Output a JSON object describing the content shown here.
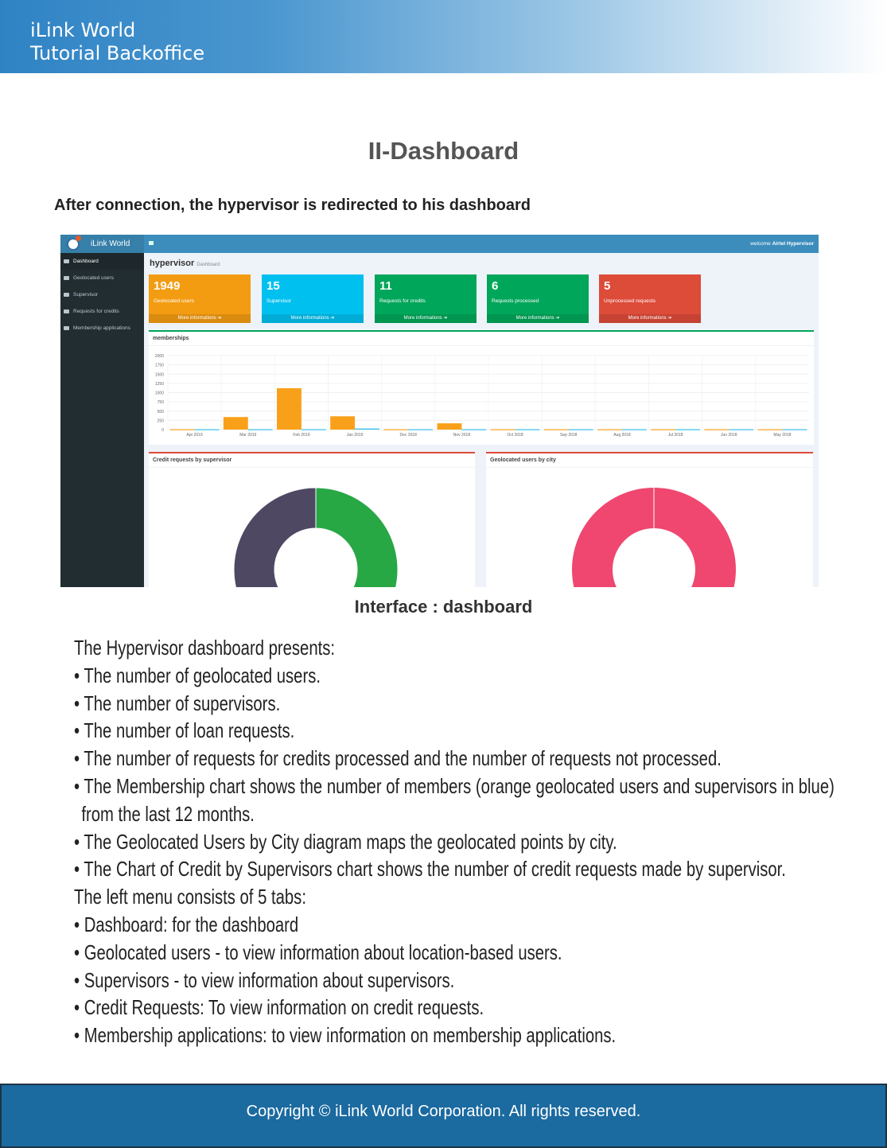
{
  "header": {
    "line1": "iLink World",
    "line2": "Tutorial Backoffice"
  },
  "title": "II-Dashboard",
  "intro": "After connection, the hypervisor is redirected to his dashboard",
  "app": {
    "logo": "iLink World",
    "sidebar": [
      "Dashboard",
      "Geolocated users",
      "Supervisor",
      "Requests for credits",
      "Membership applications"
    ],
    "welcome": "welcome",
    "user": "Airtel Hypervisor",
    "page_title": "hypervisor",
    "page_sub": "Dashboard",
    "boxes": [
      {
        "value": "1949",
        "label": "Geolocated users",
        "link": "More informations ➔",
        "color": "#f39c12"
      },
      {
        "value": "15",
        "label": "Supervisor",
        "link": "More informations ➔",
        "color": "#00c0ef"
      },
      {
        "value": "11",
        "label": "Requests for credits",
        "link": "More informations ➔",
        "color": "#00a65a"
      },
      {
        "value": "6",
        "label": "Requests processed",
        "link": "More informations ➔",
        "color": "#00a65a"
      },
      {
        "value": "5",
        "label": "Unprocessed requests",
        "link": "More informations ➔",
        "color": "#dd4b39"
      }
    ],
    "credit_title": "Credit requests by supervisor",
    "city_title": "Geolocated users by city"
  },
  "chart_data": {
    "type": "bar",
    "title": "memberships",
    "categories": [
      "Apr 2019",
      "Mar 2019",
      "Feb 2019",
      "Jan 2019",
      "Dec 2018",
      "Nov 2018",
      "Oct 2018",
      "Sep 2018",
      "Aug 2018",
      "Jul 2018",
      "Jun 2018",
      "May 2018"
    ],
    "series": [
      {
        "color": "#f9a01b",
        "values": [
          10,
          340,
          1120,
          360,
          10,
          170,
          10,
          10,
          10,
          10,
          10,
          10
        ]
      },
      {
        "color": "#36c0ef",
        "values": [
          10,
          10,
          10,
          30,
          10,
          10,
          10,
          10,
          10,
          10,
          10,
          10
        ]
      }
    ],
    "yticks": [
      0,
      250,
      500,
      750,
      1000,
      1250,
      1500,
      1750,
      2000
    ],
    "ylim": [
      0,
      2000
    ],
    "grid": true
  },
  "caption": "Interface : dashboard",
  "body": [
    "The Hypervisor dashboard presents:",
    "• The number of geolocated users.",
    "• The number of supervisors.",
    "• The number of loan requests.",
    "• The number of requests for credits processed and the number of requests not processed.",
    "• The Membership chart shows the number of members (orange geolocated users and supervisors in blue)",
    "from the last 12 months.",
    "• The Geolocated Users by City diagram maps the geolocated points by city.",
    "• The Chart of Credit by Supervisors chart shows the number of credit requests made by supervisor.",
    "The left menu consists of 5 tabs:",
    "• Dashboard: for the dashboard",
    "• Geolocated users - to view information about location-based users.",
    "• Supervisors - to view information about supervisors.",
    "• Credit Requests: To view information on credit requests.",
    "• Membership applications: to view information on membership applications."
  ],
  "footer": "Copyright © iLink World Corporation. All rights reserved."
}
